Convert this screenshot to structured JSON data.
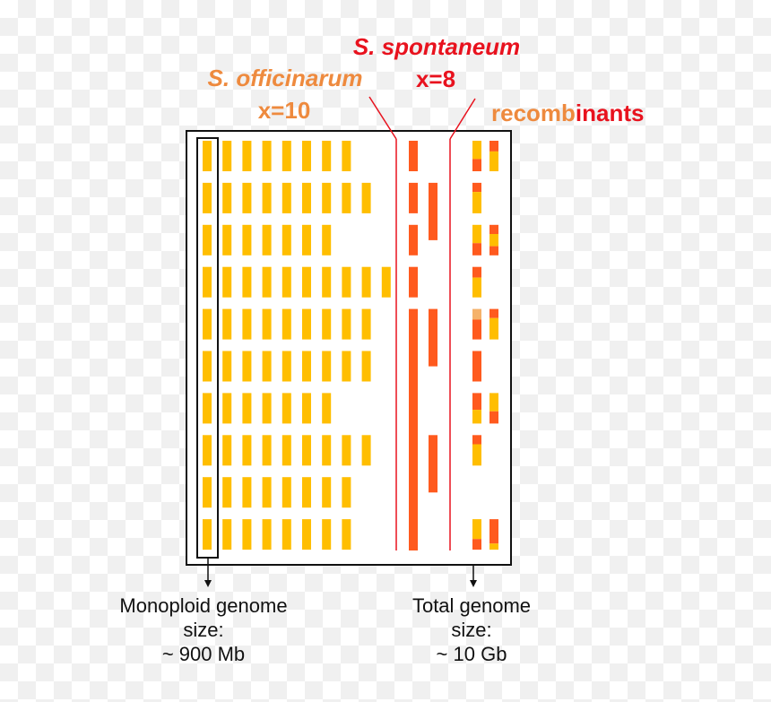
{
  "labels": {
    "spontaneum_name": "S. spontaneum",
    "spontaneum_x": "x=8",
    "officinarum_name": "S. officinarum",
    "officinarum_x": "x=10",
    "recombinants_part1": "recomb",
    "recombinants_part2": "inants"
  },
  "captions": {
    "left_line1": "Monoploid genome",
    "left_line2": "size:",
    "left_line3": "~ 900 Mb",
    "right_line1": "Total genome",
    "right_line2": "size:",
    "right_line3": "~ 10 Gb"
  },
  "colors": {
    "officinarum": "#ffbe00",
    "spontaneum": "#ff5a1e",
    "red_text": "#e8121e",
    "orange_text": "#ee8a3e",
    "divider": "#e8121e",
    "frame": "#111111"
  },
  "officinarum_copies_per_group": [
    8,
    9,
    7,
    10,
    9,
    9,
    7,
    9,
    8,
    8
  ],
  "spontaneum_copies_per_group": [
    1,
    2,
    1,
    1,
    2,
    1,
    1,
    2,
    1,
    1
  ],
  "recombinant_columns": [
    [
      [
        {
          "c": "officinarum",
          "f": 0.6
        },
        {
          "c": "spontaneum",
          "f": 0.4
        }
      ],
      [
        {
          "c": "spontaneum",
          "f": 0.3
        },
        {
          "c": "officinarum",
          "f": 0.7
        }
      ],
      [
        {
          "c": "officinarum",
          "f": 0.6
        },
        {
          "c": "spontaneum",
          "f": 0.4
        }
      ],
      [
        {
          "c": "spontaneum",
          "f": 0.35
        },
        {
          "c": "officinarum",
          "f": 0.65
        }
      ],
      [
        {
          "c": "light",
          "f": 0.35
        },
        {
          "c": "spontaneum",
          "f": 0.65
        }
      ],
      [
        {
          "c": "spontaneum",
          "f": 1.0
        }
      ],
      [
        {
          "c": "spontaneum",
          "f": 0.55
        },
        {
          "c": "officinarum",
          "f": 0.45
        }
      ],
      [
        {
          "c": "spontaneum",
          "f": 0.3
        },
        {
          "c": "officinarum",
          "f": 0.7
        }
      ],
      [],
      [
        {
          "c": "officinarum",
          "f": 0.65
        },
        {
          "c": "spontaneum",
          "f": 0.35
        }
      ]
    ],
    [
      [
        {
          "c": "spontaneum",
          "f": 0.35
        },
        {
          "c": "officinarum",
          "f": 0.65
        }
      ],
      [],
      [
        {
          "c": "spontaneum",
          "f": 0.3
        },
        {
          "c": "officinarum",
          "f": 0.4
        },
        {
          "c": "spontaneum",
          "f": 0.3
        }
      ],
      [],
      [
        {
          "c": "spontaneum",
          "f": 0.3
        },
        {
          "c": "officinarum",
          "f": 0.7
        }
      ],
      [],
      [
        {
          "c": "officinarum",
          "f": 0.6
        },
        {
          "c": "spontaneum",
          "f": 0.4
        }
      ],
      [],
      [],
      [
        {
          "c": "spontaneum",
          "f": 0.8
        },
        {
          "c": "officinarum",
          "f": 0.2
        }
      ]
    ]
  ]
}
